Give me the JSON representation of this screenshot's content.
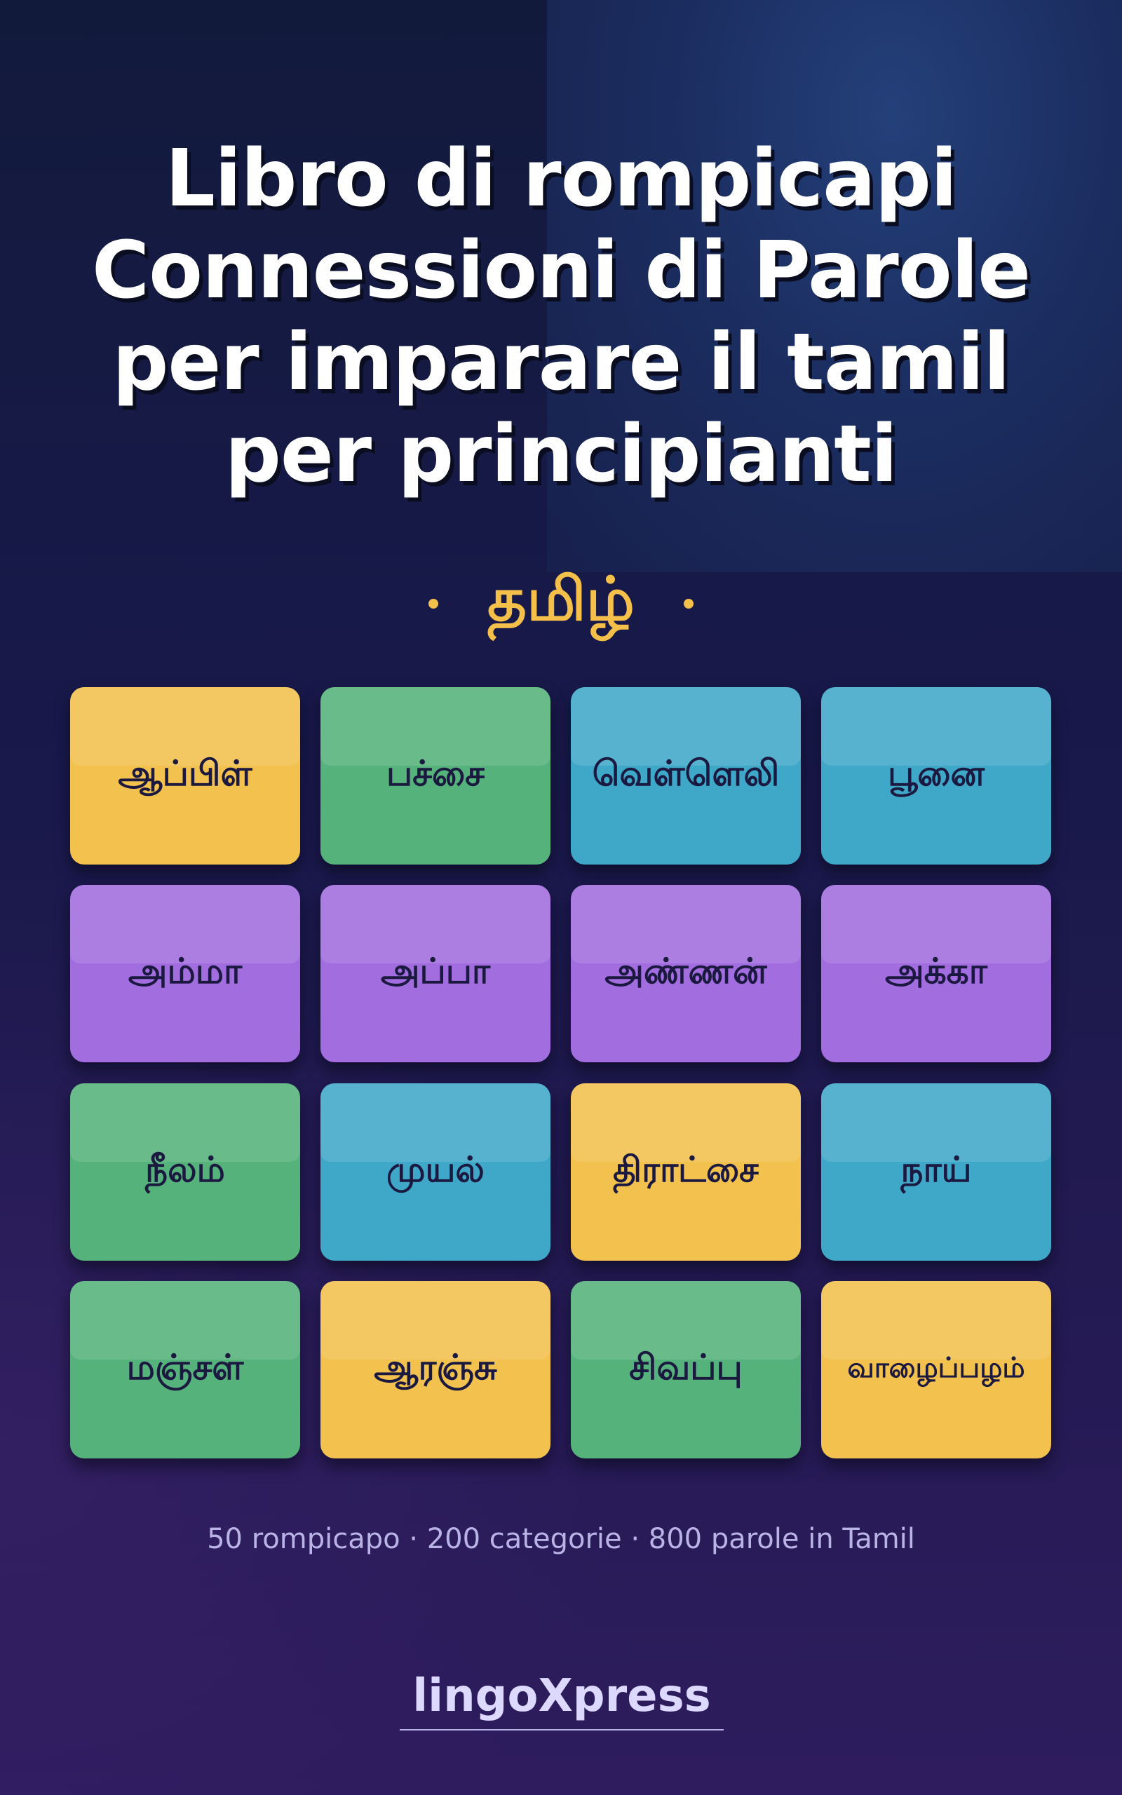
{
  "title_lines": [
    "Libro di rompicapi",
    "Connessioni di Parole",
    "per imparare il tamil",
    "per principianti"
  ],
  "language_label": "தமிழ்",
  "colors": {
    "yellow": "#f2c14e",
    "green": "#55b27a",
    "blue": "#3fa8c8",
    "purple": "#a26ddf",
    "accent": "#f5c04a"
  },
  "tiles": [
    {
      "word": "ஆப்பிள்",
      "color": "yellow"
    },
    {
      "word": "பச்சை",
      "color": "green"
    },
    {
      "word": "வெள்ளெலி",
      "color": "blue"
    },
    {
      "word": "பூனை",
      "color": "blue"
    },
    {
      "word": "அம்மா",
      "color": "purple"
    },
    {
      "word": "அப்பா",
      "color": "purple"
    },
    {
      "word": "அண்ணன்",
      "color": "purple"
    },
    {
      "word": "அக்கா",
      "color": "purple"
    },
    {
      "word": "நீலம்",
      "color": "green"
    },
    {
      "word": "முயல்",
      "color": "blue"
    },
    {
      "word": "திராட்சை",
      "color": "yellow"
    },
    {
      "word": "நாய்",
      "color": "blue"
    },
    {
      "word": "மஞ்சள்",
      "color": "green"
    },
    {
      "word": "ஆரஞ்சு",
      "color": "yellow"
    },
    {
      "word": "சிவப்பு",
      "color": "green"
    },
    {
      "word": "வாழைப்பழம்",
      "color": "yellow"
    }
  ],
  "stats": "50 rompicapo · 200 categorie · 800 parole in Tamil",
  "brand": "lingoXpress"
}
